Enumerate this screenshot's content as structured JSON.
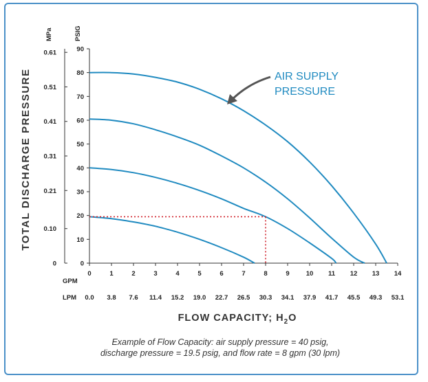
{
  "chart_data": {
    "type": "line",
    "ylabel": "TOTAL DISCHARGE PRESSURE",
    "xlabel_main": "FLOW CAPACITY; H",
    "xlabel_sub": "2",
    "xlabel_end": "O",
    "y_unit_psig": "PSIG",
    "y_unit_mpa": "MPa",
    "x_unit_gpm": "GPM",
    "x_unit_lpm": "LPM",
    "ylim": [
      0,
      90
    ],
    "xlim": [
      0,
      14
    ],
    "y_ticks_psig": [
      "0",
      "10",
      "20",
      "30",
      "40",
      "50",
      "60",
      "70",
      "80",
      "90"
    ],
    "y_ticks_mpa": [
      {
        "value": 0,
        "label": "0"
      },
      {
        "value": 14.5,
        "label": "0.10"
      },
      {
        "value": 30.5,
        "label": "0.21"
      },
      {
        "value": 45,
        "label": "0.31"
      },
      {
        "value": 59.5,
        "label": "0.41"
      },
      {
        "value": 74,
        "label": "0.51"
      },
      {
        "value": 88.5,
        "label": "0.61"
      }
    ],
    "x_ticks_gpm": [
      "0",
      "1",
      "2",
      "3",
      "4",
      "5",
      "6",
      "7",
      "8",
      "9",
      "10",
      "11",
      "12",
      "13",
      "14"
    ],
    "x_ticks_lpm": [
      "0.0",
      "3.8",
      "7.6",
      "11.4",
      "15.2",
      "19.0",
      "22.7",
      "26.5",
      "30.3",
      "34.1",
      "37.9",
      "41.7",
      "45.5",
      "49.3",
      "53.1"
    ],
    "series": [
      {
        "air_supply_psig": 80,
        "points": [
          [
            0,
            80
          ],
          [
            1,
            80
          ],
          [
            2,
            79.4
          ],
          [
            3,
            78
          ],
          [
            4,
            76
          ],
          [
            5,
            73
          ],
          [
            6,
            69
          ],
          [
            7,
            64
          ],
          [
            8,
            58
          ],
          [
            9,
            51
          ],
          [
            10,
            42.5
          ],
          [
            11,
            32.5
          ],
          [
            12,
            21
          ],
          [
            13,
            8
          ],
          [
            13.5,
            0
          ]
        ]
      },
      {
        "air_supply_psig": 60,
        "points": [
          [
            0,
            60.5
          ],
          [
            1,
            60
          ],
          [
            2,
            58.5
          ],
          [
            3,
            56
          ],
          [
            4,
            53
          ],
          [
            5,
            49.5
          ],
          [
            6,
            45
          ],
          [
            7,
            40
          ],
          [
            8,
            34
          ],
          [
            9,
            27
          ],
          [
            10,
            19
          ],
          [
            11,
            10.5
          ],
          [
            12,
            2.5
          ],
          [
            12.5,
            0
          ]
        ]
      },
      {
        "air_supply_psig": 40,
        "points": [
          [
            0,
            40
          ],
          [
            1,
            39.3
          ],
          [
            2,
            38
          ],
          [
            3,
            36
          ],
          [
            4,
            33.5
          ],
          [
            5,
            30.5
          ],
          [
            6,
            27
          ],
          [
            7,
            23
          ],
          [
            8,
            19.5
          ],
          [
            9,
            14.5
          ],
          [
            10,
            8.5
          ],
          [
            11,
            2
          ],
          [
            11.2,
            0
          ]
        ]
      },
      {
        "air_supply_psig": 20,
        "points": [
          [
            0,
            19.5
          ],
          [
            1,
            18.7
          ],
          [
            2,
            17.3
          ],
          [
            3,
            15.5
          ],
          [
            4,
            13
          ],
          [
            5,
            10
          ],
          [
            6,
            6.5
          ],
          [
            7,
            2.5
          ],
          [
            7.5,
            0
          ]
        ]
      }
    ],
    "example_point": {
      "gpm": 8,
      "psig": 19.5
    },
    "line_color": "#1f8ac0",
    "example_color": "#d0202a",
    "annotation": [
      "AIR SUPPLY",
      "PRESSURE"
    ],
    "caption": [
      "Example of Flow Capacity: air supply pressure = 40 psig,",
      "discharge pressure = 19.5 psig, and flow rate = 8 gpm (30 lpm)"
    ]
  }
}
